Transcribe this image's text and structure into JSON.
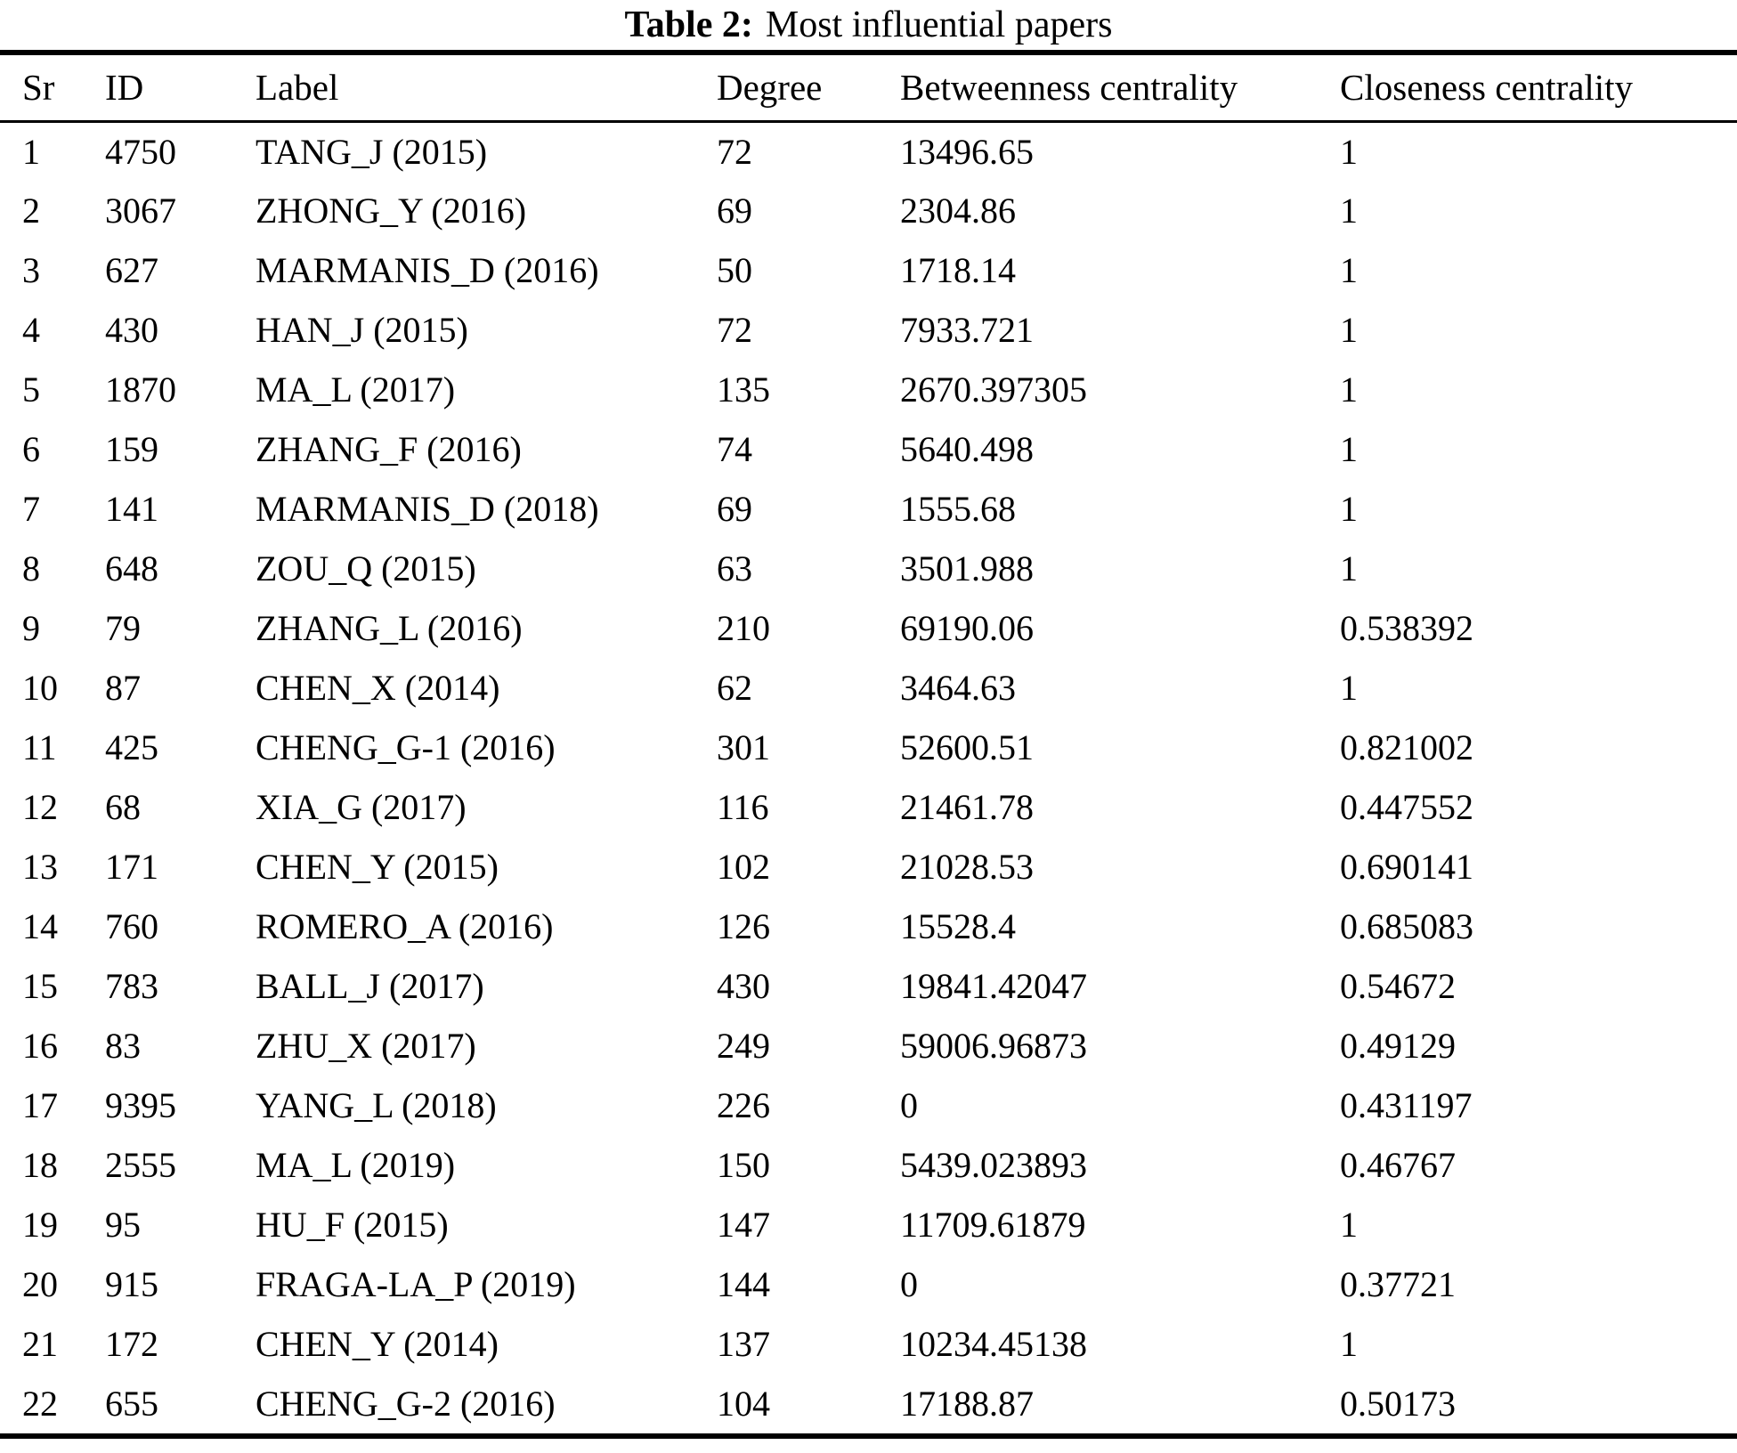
{
  "table": {
    "caption_label": "Table 2:",
    "caption_title": "Most influential papers",
    "columns": [
      "Sr",
      "ID",
      "Label",
      "Degree",
      "Betweenness centrality",
      "Closeness centrality"
    ],
    "rows": [
      [
        "1",
        "4750",
        "TANG_J (2015)",
        "72",
        "13496.65",
        "1"
      ],
      [
        "2",
        "3067",
        "ZHONG_Y (2016)",
        "69",
        "2304.86",
        "1"
      ],
      [
        "3",
        "627",
        "MARMANIS_D (2016)",
        "50",
        "1718.14",
        "1"
      ],
      [
        "4",
        "430",
        "HAN_J (2015)",
        "72",
        "7933.721",
        "1"
      ],
      [
        "5",
        "1870",
        "MA_L (2017)",
        "135",
        "2670.397305",
        "1"
      ],
      [
        "6",
        "159",
        "ZHANG_F (2016)",
        "74",
        "5640.498",
        "1"
      ],
      [
        "7",
        "141",
        "MARMANIS_D (2018)",
        "69",
        "1555.68",
        "1"
      ],
      [
        "8",
        "648",
        "ZOU_Q (2015)",
        "63",
        "3501.988",
        "1"
      ],
      [
        "9",
        "79",
        "ZHANG_L (2016)",
        "210",
        "69190.06",
        "0.538392"
      ],
      [
        "10",
        "87",
        "CHEN_X (2014)",
        "62",
        "3464.63",
        "1"
      ],
      [
        "11",
        "425",
        "CHENG_G-1 (2016)",
        "301",
        "52600.51",
        "0.821002"
      ],
      [
        "12",
        "68",
        "XIA_G (2017)",
        "116",
        "21461.78",
        "0.447552"
      ],
      [
        "13",
        "171",
        "CHEN_Y (2015)",
        "102",
        "21028.53",
        "0.690141"
      ],
      [
        "14",
        "760",
        "ROMERO_A (2016)",
        "126",
        "15528.4",
        "0.685083"
      ],
      [
        "15",
        "783",
        "BALL_J (2017)",
        "430",
        "19841.42047",
        "0.54672"
      ],
      [
        "16",
        "83",
        "ZHU_X (2017)",
        "249",
        "59006.96873",
        "0.49129"
      ],
      [
        "17",
        "9395",
        "YANG_L (2018)",
        "226",
        "0",
        "0.431197"
      ],
      [
        "18",
        "2555",
        "MA_L (2019)",
        "150",
        "5439.023893",
        "0.46767"
      ],
      [
        "19",
        "95",
        "HU_F (2015)",
        "147",
        "11709.61879",
        "1"
      ],
      [
        "20",
        "915",
        "FRAGA-LA_P (2019)",
        "144",
        "0",
        "0.37721"
      ],
      [
        "21",
        "172",
        "CHEN_Y (2014)",
        "137",
        "10234.45138",
        "1"
      ],
      [
        "22",
        "655",
        "CHENG_G-2 (2016)",
        "104",
        "17188.87",
        "0.50173"
      ]
    ]
  }
}
